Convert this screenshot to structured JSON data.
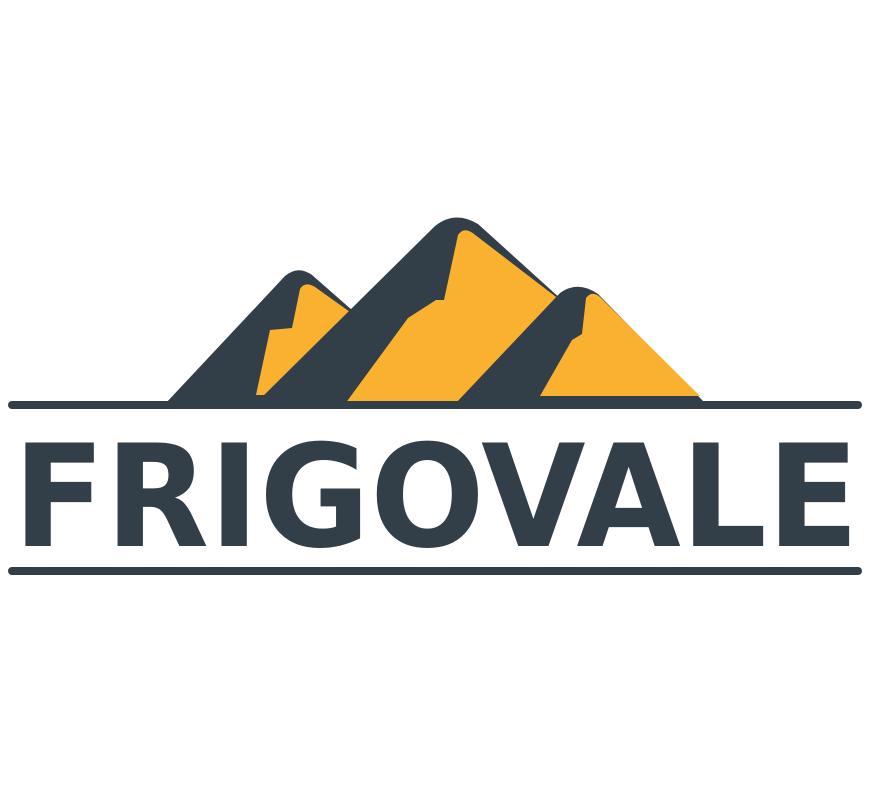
{
  "logo": {
    "name": "FRIGOVALE",
    "colors": {
      "dark": "#333f48",
      "accent": "#fbb130",
      "background": "#ffffff"
    },
    "emblem": "mountain-range-icon"
  }
}
